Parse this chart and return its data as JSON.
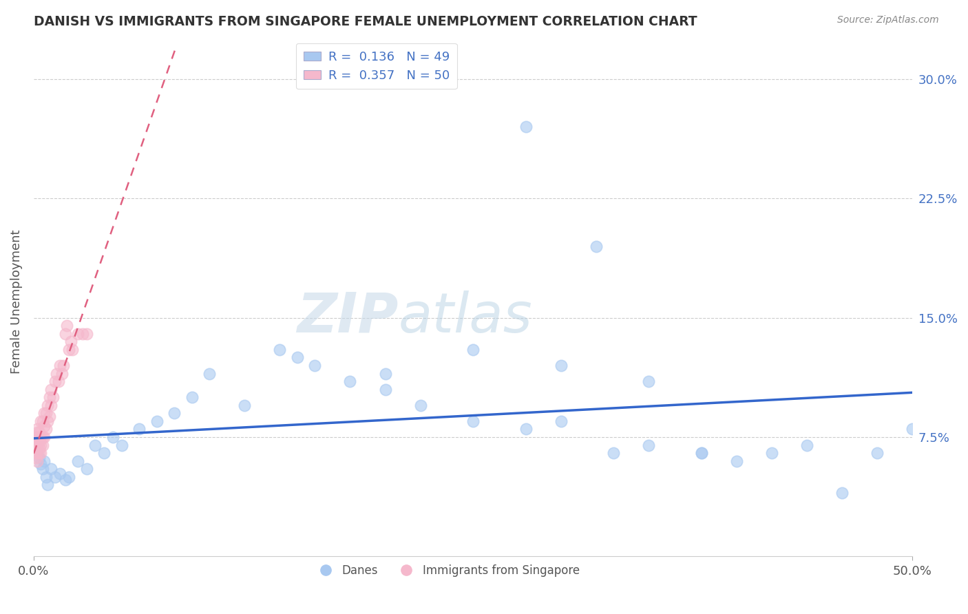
{
  "title": "DANISH VS IMMIGRANTS FROM SINGAPORE FEMALE UNEMPLOYMENT CORRELATION CHART",
  "source": "Source: ZipAtlas.com",
  "ylabel": "Female Unemployment",
  "xlim": [
    0.0,
    0.5
  ],
  "ylim": [
    0.0,
    0.32
  ],
  "ytick_values": [
    0.075,
    0.15,
    0.225,
    0.3
  ],
  "ytick_labels": [
    "7.5%",
    "15.0%",
    "22.5%",
    "30.0%"
  ],
  "background_color": "#ffffff",
  "danes_color": "#a8c8f0",
  "danes_edge_color": "#7aaad0",
  "danes_line_color": "#3366cc",
  "singapore_color": "#f5b8cc",
  "singapore_edge_color": "#e090a8",
  "singapore_line_color": "#e06080",
  "danes_R": 0.136,
  "danes_N": 49,
  "singapore_R": 0.357,
  "singapore_N": 50,
  "danes_x": [
    0.002,
    0.003,
    0.004,
    0.005,
    0.006,
    0.007,
    0.008,
    0.01,
    0.012,
    0.015,
    0.018,
    0.02,
    0.025,
    0.03,
    0.035,
    0.04,
    0.045,
    0.05,
    0.06,
    0.07,
    0.08,
    0.09,
    0.1,
    0.12,
    0.14,
    0.16,
    0.18,
    0.2,
    0.22,
    0.25,
    0.28,
    0.3,
    0.33,
    0.35,
    0.38,
    0.4,
    0.42,
    0.44,
    0.46,
    0.48,
    0.5,
    0.15,
    0.2,
    0.25,
    0.3,
    0.35,
    0.28,
    0.32,
    0.38
  ],
  "danes_y": [
    0.065,
    0.062,
    0.058,
    0.055,
    0.06,
    0.05,
    0.045,
    0.055,
    0.05,
    0.052,
    0.048,
    0.05,
    0.06,
    0.055,
    0.07,
    0.065,
    0.075,
    0.07,
    0.08,
    0.085,
    0.09,
    0.1,
    0.115,
    0.095,
    0.13,
    0.12,
    0.11,
    0.105,
    0.095,
    0.085,
    0.08,
    0.085,
    0.065,
    0.07,
    0.065,
    0.06,
    0.065,
    0.07,
    0.04,
    0.065,
    0.08,
    0.125,
    0.115,
    0.13,
    0.12,
    0.11,
    0.27,
    0.195,
    0.065
  ],
  "singapore_x": [
    0.001,
    0.001,
    0.001,
    0.001,
    0.001,
    0.002,
    0.002,
    0.002,
    0.002,
    0.002,
    0.002,
    0.002,
    0.003,
    0.003,
    0.003,
    0.003,
    0.003,
    0.004,
    0.004,
    0.004,
    0.004,
    0.005,
    0.005,
    0.005,
    0.006,
    0.006,
    0.006,
    0.007,
    0.007,
    0.008,
    0.008,
    0.009,
    0.009,
    0.01,
    0.01,
    0.011,
    0.012,
    0.013,
    0.014,
    0.015,
    0.016,
    0.017,
    0.018,
    0.019,
    0.02,
    0.021,
    0.022,
    0.025,
    0.028,
    0.03
  ],
  "singapore_y": [
    0.062,
    0.065,
    0.068,
    0.07,
    0.075,
    0.06,
    0.065,
    0.07,
    0.072,
    0.075,
    0.078,
    0.08,
    0.065,
    0.068,
    0.072,
    0.075,
    0.078,
    0.065,
    0.07,
    0.075,
    0.085,
    0.07,
    0.075,
    0.085,
    0.075,
    0.082,
    0.09,
    0.08,
    0.09,
    0.085,
    0.095,
    0.088,
    0.1,
    0.095,
    0.105,
    0.1,
    0.11,
    0.115,
    0.11,
    0.12,
    0.115,
    0.12,
    0.14,
    0.145,
    0.13,
    0.135,
    0.13,
    0.14,
    0.14,
    0.14
  ]
}
